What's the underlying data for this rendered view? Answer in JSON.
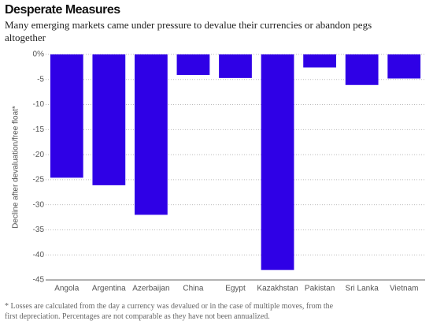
{
  "chart_data": {
    "type": "bar",
    "title": "Desperate Measures",
    "subtitle": "Many emerging markets came under pressure to devalue their currencies or abandon pegs altogether",
    "y_label": "Decline after devaluation/free float*",
    "footnote": "* Losses are calculated from the day a currency was devalued or in the case of multiple moves, from the first depreciation. Percentages are not comparable as they have not been annualized.",
    "categories": [
      "Angola",
      "Argentina",
      "Azerbaijan",
      "China",
      "Egypt",
      "Kazakhstan",
      "Pakistan",
      "Sri Lanka",
      "Vietnam"
    ],
    "values": [
      -24.6,
      -26.1,
      -32,
      -4.1,
      -4.7,
      -43,
      -2.6,
      -6.1,
      -4.8
    ],
    "color": "#2f00e6",
    "ylim": [
      -45,
      0
    ],
    "yticks": [
      {
        "value": 0,
        "label": "0%"
      },
      -5,
      -10,
      -15,
      -20,
      -25,
      -30,
      -35,
      -40,
      -45
    ],
    "grid": true
  }
}
